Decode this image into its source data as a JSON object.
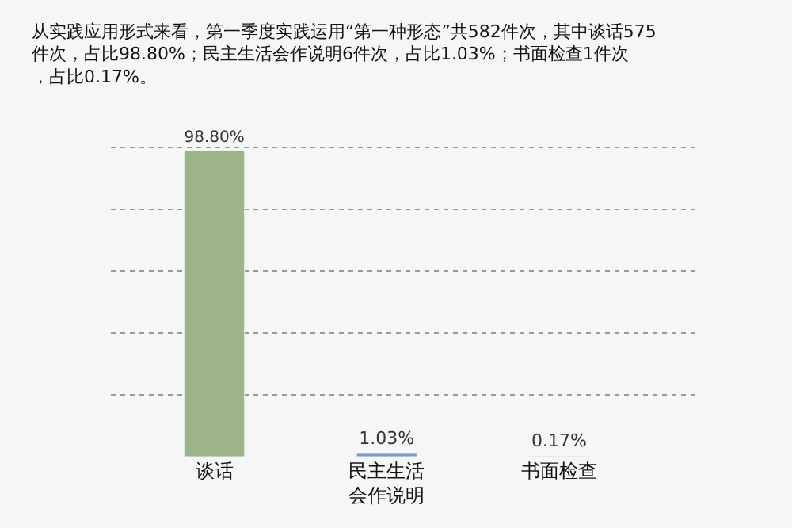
{
  "chart_data": {
    "type": "bar",
    "title": "从实践应用形式来看，第一季度实践运用“第一种形态”共582件次，其中谈话575件次，占比98.80%；民主生活会作说明6件次，占比1.03%；书面检查1件次，占比0.17%。",
    "categories": [
      "谈话",
      "民主生活会作说明",
      "书面检查"
    ],
    "values": [
      98.8,
      1.03,
      0.17
    ],
    "colors": [
      "#9db48a",
      "#7b9bc9",
      "#c9b5de"
    ],
    "value_labels": [
      "98.80%",
      "1.03%",
      "0.17%"
    ],
    "tick_labels": "x",
    "grid": "y"
  }
}
